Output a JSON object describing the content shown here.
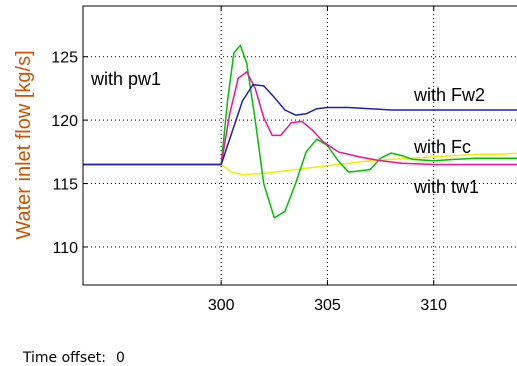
{
  "chart_data": {
    "type": "line",
    "xlabel": "",
    "ylabel": "Water inlet flow [kg/s]",
    "xlim": [
      293.5,
      314.2
    ],
    "ylim": [
      107,
      129
    ],
    "xticks": [
      300,
      305,
      310
    ],
    "yticks": [
      110,
      115,
      120,
      125
    ],
    "grid": true,
    "series": [
      {
        "name": "with pw1",
        "color": "#00c000",
        "x": [
          293.5,
          300,
          300.3,
          300.6,
          300.9,
          301.2,
          301.6,
          302,
          302.5,
          303,
          303.5,
          304,
          304.5,
          305,
          305.5,
          306,
          307,
          307.5,
          308,
          308.5,
          309,
          310,
          311,
          312,
          313,
          314.2
        ],
        "y": [
          116.5,
          116.5,
          121.5,
          125.3,
          125.9,
          124.5,
          120,
          115,
          112.3,
          112.8,
          115,
          117.5,
          118.5,
          118,
          116.8,
          115.9,
          116.1,
          117,
          117.4,
          117.2,
          116.9,
          116.8,
          116.9,
          117,
          117,
          117
        ]
      },
      {
        "name": "with Fc",
        "color": "#f0109a",
        "x": [
          293.5,
          300,
          300.4,
          300.8,
          301.2,
          301.6,
          302,
          302.4,
          302.8,
          303.3,
          303.8,
          304.3,
          304.8,
          305.5,
          306.5,
          307.5,
          308.5,
          310,
          312,
          314.2
        ],
        "y": [
          116.5,
          116.5,
          120.5,
          123.3,
          123.8,
          122.5,
          120.2,
          118.8,
          118.8,
          119.8,
          119.9,
          119.2,
          118.3,
          117.5,
          117.1,
          116.8,
          116.6,
          116.5,
          116.5,
          116.5
        ]
      },
      {
        "name": "with Fw2",
        "color": "#2020b0",
        "x": [
          293.5,
          300,
          300.5,
          301,
          301.5,
          302,
          302.5,
          303,
          303.5,
          304,
          304.5,
          305,
          306,
          307,
          308,
          310,
          312,
          314.2
        ],
        "y": [
          116.5,
          116.5,
          119,
          121.5,
          122.8,
          122.7,
          121.8,
          120.8,
          120.4,
          120.5,
          120.9,
          121,
          121,
          120.9,
          120.8,
          120.8,
          120.8,
          120.8
        ]
      },
      {
        "name": "with tw1",
        "color": "#f0f000",
        "x": [
          293.5,
          300,
          300.5,
          301,
          302,
          303,
          304,
          305,
          306,
          307,
          308,
          309,
          310,
          311,
          312,
          313,
          314.2
        ],
        "y": [
          116.5,
          116.5,
          115.9,
          115.7,
          115.8,
          116.0,
          116.2,
          116.4,
          116.6,
          116.8,
          116.9,
          117.0,
          117.1,
          117.2,
          117.3,
          117.3,
          117.4
        ]
      }
    ]
  },
  "footer": {
    "label": "Time offset:",
    "value": "0"
  }
}
